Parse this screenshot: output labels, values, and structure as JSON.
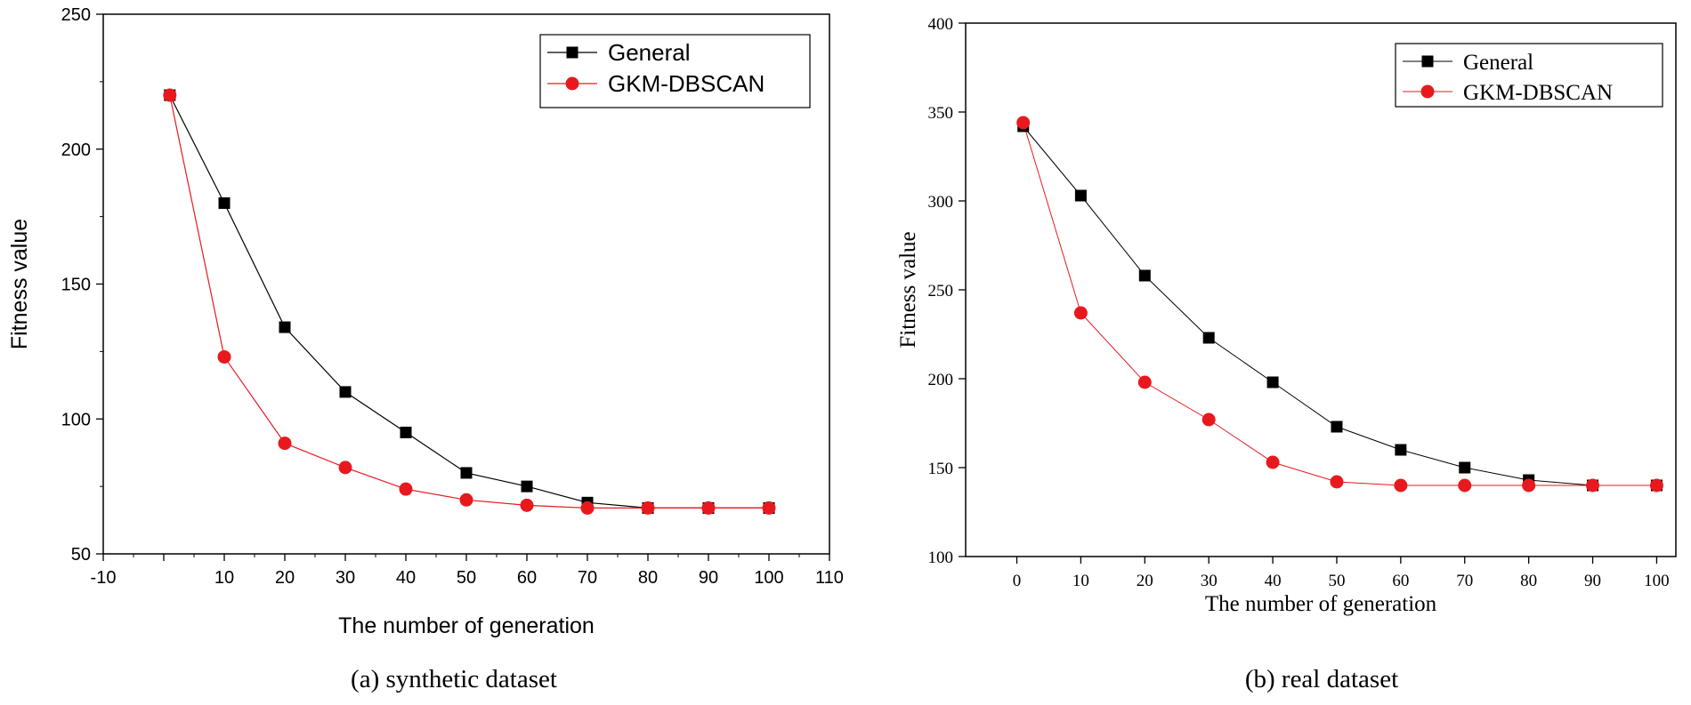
{
  "chart_data": [
    {
      "type": "line",
      "caption": "(a) synthetic dataset",
      "xlabel": "The number of generation",
      "ylabel": "Fitness value",
      "xlim": [
        -10,
        110
      ],
      "ylim": [
        50,
        250
      ],
      "xticks": [
        -10,
        0,
        10,
        20,
        30,
        40,
        50,
        60,
        70,
        80,
        90,
        100,
        110
      ],
      "xtick_labels": [
        "-10",
        "",
        "10",
        "20",
        "30",
        "40",
        "50",
        "60",
        "70",
        "80",
        "90",
        "100",
        "110"
      ],
      "yticks": [
        50,
        100,
        150,
        200,
        250
      ],
      "ytick_labels": [
        "50",
        "100",
        "150",
        "200",
        "250"
      ],
      "legend_position": "top-right",
      "x": [
        1,
        10,
        20,
        30,
        40,
        50,
        60,
        70,
        80,
        90,
        100
      ],
      "series": [
        {
          "name": "General",
          "color": "#000000",
          "marker": "square",
          "values": [
            220,
            180,
            134,
            110,
            95,
            80,
            75,
            69,
            67,
            67,
            67
          ]
        },
        {
          "name": "GKM-DBSCAN",
          "color": "#e8191e",
          "marker": "circle",
          "values": [
            220,
            123,
            91,
            82,
            74,
            70,
            68,
            67,
            67,
            67,
            67
          ]
        }
      ]
    },
    {
      "type": "line",
      "caption": "(b) real dataset",
      "xlabel": "The number of generation",
      "ylabel": "Fitness value",
      "xlim": [
        -8,
        103
      ],
      "ylim": [
        100,
        400
      ],
      "xticks": [
        0,
        10,
        20,
        30,
        40,
        50,
        60,
        70,
        80,
        90,
        100
      ],
      "xtick_labels": [
        "0",
        "10",
        "20",
        "30",
        "40",
        "50",
        "60",
        "70",
        "80",
        "90",
        "100"
      ],
      "yticks": [
        100,
        150,
        200,
        250,
        300,
        350,
        400
      ],
      "ytick_labels": [
        "100",
        "150",
        "200",
        "250",
        "300",
        "350",
        "400"
      ],
      "legend_position": "top-right",
      "x": [
        1,
        10,
        20,
        30,
        40,
        50,
        60,
        70,
        80,
        90,
        100
      ],
      "series": [
        {
          "name": "General",
          "color": "#000000",
          "marker": "square",
          "values": [
            342,
            303,
            258,
            223,
            198,
            173,
            160,
            150,
            143,
            140,
            140
          ]
        },
        {
          "name": "GKM-DBSCAN",
          "color": "#e8191e",
          "marker": "circle",
          "values": [
            344,
            237,
            198,
            177,
            153,
            142,
            140,
            140,
            140,
            140,
            140
          ]
        }
      ]
    }
  ]
}
